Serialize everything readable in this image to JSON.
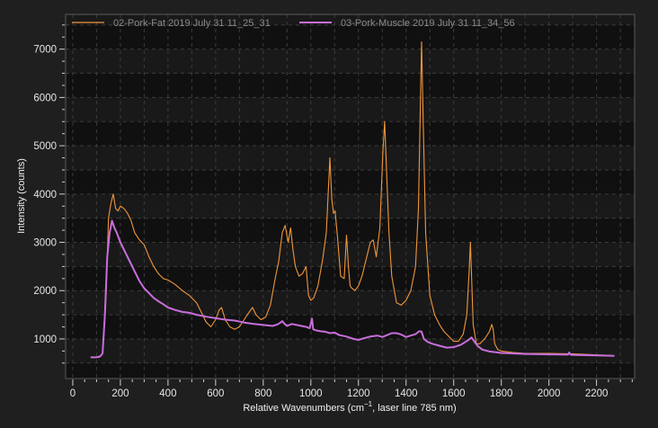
{
  "chart_data": {
    "type": "line",
    "xlabel": "Relative Wavenumbers (cm",
    "xlabel_sup": "−1",
    "xlabel_tail": ", laser line 785 nm)",
    "ylabel": "Intensity (counts)",
    "xlim": [
      -30,
      2360
    ],
    "ylim": [
      180,
      7720
    ],
    "x_ticks": [
      0,
      200,
      400,
      600,
      800,
      1000,
      1200,
      1400,
      1600,
      1800,
      2000,
      2200
    ],
    "y_ticks": [
      1000,
      2000,
      3000,
      4000,
      5000,
      6000,
      7000
    ],
    "grid": true,
    "legend_position": "top",
    "series": [
      {
        "name": "02-Pork-Fat 2019 July 31 11_25_31",
        "color": "#f0963c",
        "x": [
          75,
          110,
          125,
          140,
          150,
          160,
          170,
          180,
          190,
          200,
          215,
          230,
          245,
          260,
          280,
          300,
          320,
          340,
          360,
          380,
          400,
          430,
          460,
          490,
          520,
          540,
          560,
          580,
          600,
          615,
          625,
          640,
          660,
          680,
          700,
          720,
          740,
          755,
          770,
          790,
          810,
          830,
          850,
          865,
          880,
          892,
          905,
          915,
          925,
          935,
          950,
          965,
          980,
          990,
          1000,
          1012,
          1030,
          1050,
          1065,
          1080,
          1088,
          1095,
          1102,
          1112,
          1125,
          1140,
          1150,
          1158,
          1165,
          1172,
          1185,
          1200,
          1215,
          1230,
          1250,
          1262,
          1275,
          1290,
          1303,
          1310,
          1318,
          1328,
          1340,
          1360,
          1380,
          1400,
          1420,
          1440,
          1452,
          1460,
          1465,
          1472,
          1482,
          1500,
          1520,
          1540,
          1560,
          1580,
          1600,
          1620,
          1640,
          1655,
          1665,
          1670,
          1675,
          1682,
          1695,
          1710,
          1730,
          1750,
          1760,
          1766,
          1772,
          1785,
          1800,
          1850,
          1900,
          2000,
          2100,
          2150,
          2200,
          2250,
          2275
        ],
        "y": [
          620,
          620,
          700,
          1900,
          3500,
          3800,
          4000,
          3700,
          3650,
          3750,
          3700,
          3600,
          3450,
          3200,
          3050,
          2950,
          2700,
          2500,
          2350,
          2250,
          2220,
          2130,
          2000,
          1900,
          1750,
          1550,
          1350,
          1250,
          1400,
          1600,
          1650,
          1400,
          1250,
          1200,
          1250,
          1400,
          1550,
          1650,
          1500,
          1400,
          1450,
          1700,
          2250,
          2600,
          3200,
          3350,
          3000,
          3300,
          2850,
          2500,
          2300,
          2350,
          2500,
          1900,
          1800,
          1850,
          2100,
          2650,
          3200,
          4750,
          3900,
          3600,
          3650,
          3100,
          2300,
          2250,
          3150,
          2500,
          2100,
          2050,
          2000,
          2100,
          2300,
          2600,
          3000,
          3050,
          2700,
          3300,
          4900,
          5500,
          4500,
          3200,
          2300,
          1750,
          1700,
          1800,
          2000,
          2500,
          3700,
          5800,
          7150,
          5500,
          3200,
          1900,
          1500,
          1300,
          1150,
          1050,
          950,
          950,
          1100,
          1500,
          2400,
          3000,
          2300,
          1300,
          900,
          900,
          1000,
          1150,
          1300,
          1200,
          900,
          780,
          750,
          720,
          700,
          700,
          690,
          680,
          670,
          660,
          650
        ]
      },
      {
        "name": "03-Pork-Muscle 2019 July 31 11_34_56",
        "color": "#c86edc",
        "x": [
          75,
          100,
          115,
          125,
          135,
          145,
          155,
          165,
          175,
          185,
          200,
          220,
          240,
          260,
          280,
          300,
          320,
          340,
          360,
          380,
          400,
          430,
          460,
          490,
          520,
          560,
          600,
          640,
          680,
          720,
          760,
          800,
          840,
          860,
          870,
          880,
          890,
          900,
          920,
          940,
          960,
          980,
          995,
          1005,
          1010,
          1020,
          1040,
          1060,
          1080,
          1100,
          1120,
          1150,
          1180,
          1200,
          1220,
          1250,
          1280,
          1300,
          1320,
          1340,
          1360,
          1380,
          1400,
          1420,
          1440,
          1455,
          1465,
          1475,
          1490,
          1510,
          1540,
          1570,
          1600,
          1630,
          1650,
          1665,
          1675,
          1685,
          1700,
          1720,
          1750,
          1800,
          1850,
          1900,
          2000,
          2080,
          2085,
          2090,
          2100,
          2200,
          2275
        ],
        "y": [
          620,
          620,
          640,
          700,
          1500,
          2700,
          3200,
          3450,
          3300,
          3200,
          3000,
          2800,
          2600,
          2400,
          2200,
          2050,
          1950,
          1850,
          1780,
          1720,
          1650,
          1600,
          1560,
          1540,
          1500,
          1460,
          1430,
          1400,
          1380,
          1340,
          1310,
          1290,
          1270,
          1300,
          1330,
          1370,
          1310,
          1270,
          1310,
          1290,
          1270,
          1250,
          1220,
          1420,
          1200,
          1180,
          1160,
          1150,
          1120,
          1130,
          1080,
          1050,
          1000,
          980,
          1010,
          1050,
          1070,
          1040,
          1080,
          1120,
          1120,
          1090,
          1040,
          1070,
          1100,
          1160,
          1150,
          1000,
          940,
          900,
          860,
          820,
          830,
          880,
          940,
          990,
          1030,
          960,
          860,
          780,
          740,
          710,
          700,
          690,
          680,
          675,
          720,
          675,
          670,
          660,
          650
        ]
      }
    ]
  }
}
